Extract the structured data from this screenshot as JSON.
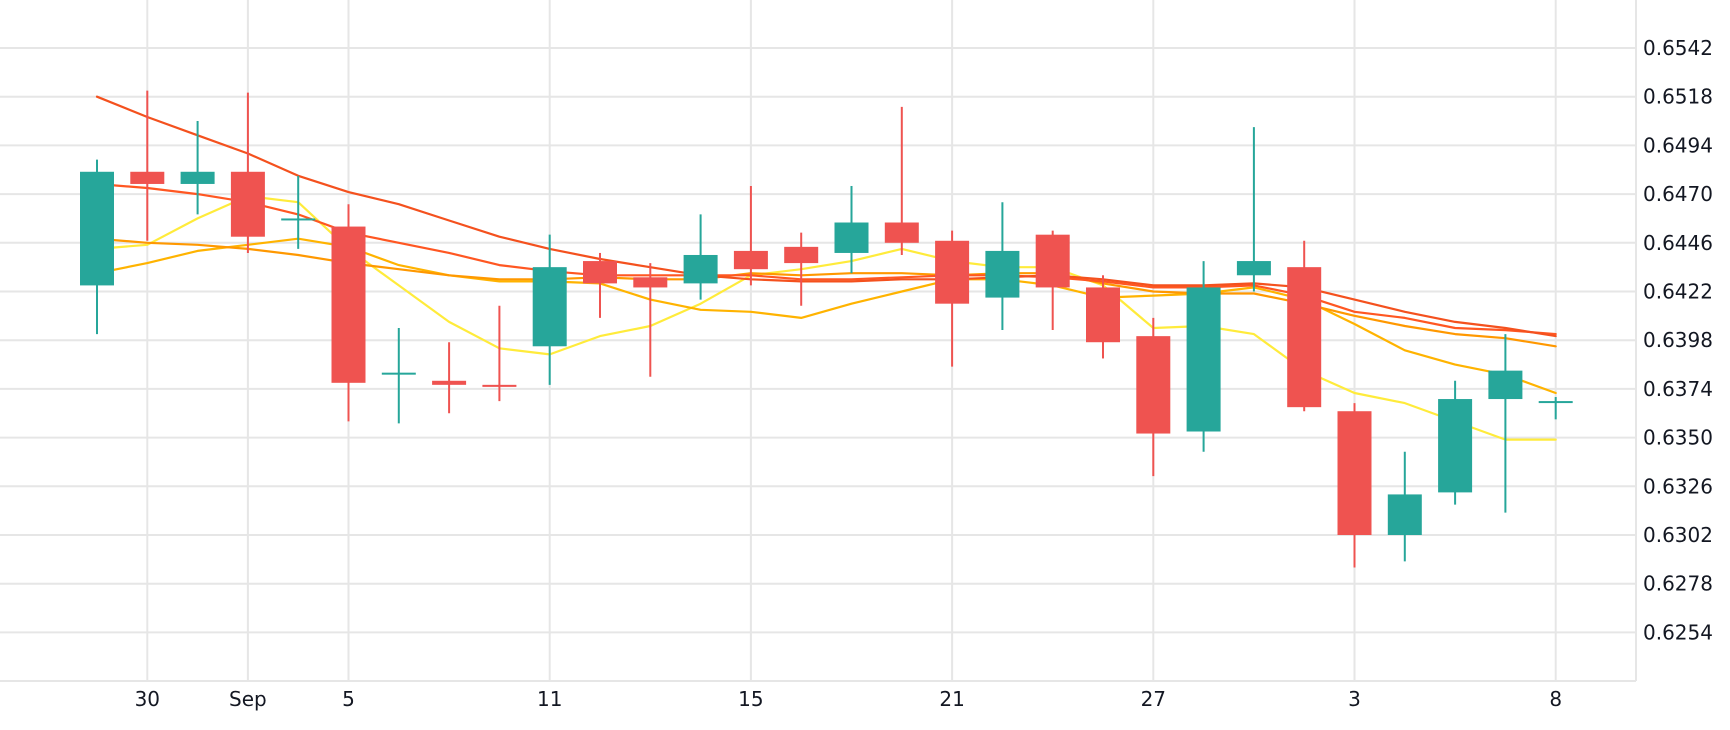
{
  "chart_data": {
    "type": "candlestick",
    "title": "",
    "xlabel": "",
    "ylabel": "",
    "ylim": [
      0.623,
      0.6566
    ],
    "grid": true,
    "y_ticks": [
      "0.6542",
      "0.6518",
      "0.6494",
      "0.6470",
      "0.6446",
      "0.6422",
      "0.6398",
      "0.6374",
      "0.6350",
      "0.6326",
      "0.6302",
      "0.6278",
      "0.6254"
    ],
    "x_ticks": [
      {
        "index": 1,
        "label": "30"
      },
      {
        "index": 3,
        "label": "Sep"
      },
      {
        "index": 5,
        "label": "5"
      },
      {
        "index": 9,
        "label": "11"
      },
      {
        "index": 13,
        "label": "15"
      },
      {
        "index": 17,
        "label": "21"
      },
      {
        "index": 21,
        "label": "27"
      },
      {
        "index": 25,
        "label": "3"
      },
      {
        "index": 29,
        "label": "8"
      }
    ],
    "colors": {
      "up": "#26a69a",
      "down": "#ef5350",
      "grid": "#e6e6e6"
    },
    "candles": [
      {
        "o": 0.6425,
        "h": 0.6487,
        "l": 0.6401,
        "c": 0.6481
      },
      {
        "o": 0.6481,
        "h": 0.6521,
        "l": 0.6447,
        "c": 0.6475
      },
      {
        "o": 0.6475,
        "h": 0.6506,
        "l": 0.646,
        "c": 0.6481
      },
      {
        "o": 0.6481,
        "h": 0.652,
        "l": 0.6441,
        "c": 0.6449
      },
      {
        "o": 0.6458,
        "h": 0.6479,
        "l": 0.6443,
        "c": 0.6458
      },
      {
        "o": 0.6454,
        "h": 0.6465,
        "l": 0.6358,
        "c": 0.6377
      },
      {
        "o": 0.6382,
        "h": 0.6404,
        "l": 0.6357,
        "c": 0.6382
      },
      {
        "o": 0.6378,
        "h": 0.6397,
        "l": 0.6362,
        "c": 0.6376
      },
      {
        "o": 0.6376,
        "h": 0.6415,
        "l": 0.6368,
        "c": 0.6375
      },
      {
        "o": 0.6395,
        "h": 0.645,
        "l": 0.6376,
        "c": 0.6434
      },
      {
        "o": 0.6437,
        "h": 0.6441,
        "l": 0.6409,
        "c": 0.6426
      },
      {
        "o": 0.6429,
        "h": 0.6436,
        "l": 0.638,
        "c": 0.6424
      },
      {
        "o": 0.6426,
        "h": 0.646,
        "l": 0.6418,
        "c": 0.644
      },
      {
        "o": 0.6442,
        "h": 0.6474,
        "l": 0.6425,
        "c": 0.6433
      },
      {
        "o": 0.6444,
        "h": 0.6451,
        "l": 0.6415,
        "c": 0.6436
      },
      {
        "o": 0.6441,
        "h": 0.6474,
        "l": 0.6431,
        "c": 0.6456
      },
      {
        "o": 0.6456,
        "h": 0.6513,
        "l": 0.644,
        "c": 0.6446
      },
      {
        "o": 0.6447,
        "h": 0.6452,
        "l": 0.6385,
        "c": 0.6416
      },
      {
        "o": 0.6419,
        "h": 0.6466,
        "l": 0.6403,
        "c": 0.6442
      },
      {
        "o": 0.645,
        "h": 0.6452,
        "l": 0.6403,
        "c": 0.6424
      },
      {
        "o": 0.6424,
        "h": 0.643,
        "l": 0.6389,
        "c": 0.6397
      },
      {
        "o": 0.64,
        "h": 0.6409,
        "l": 0.6331,
        "c": 0.6352
      },
      {
        "o": 0.6353,
        "h": 0.6437,
        "l": 0.6343,
        "c": 0.6424
      },
      {
        "o": 0.643,
        "h": 0.6503,
        "l": 0.6422,
        "c": 0.6437
      },
      {
        "o": 0.6434,
        "h": 0.6447,
        "l": 0.6363,
        "c": 0.6365
      },
      {
        "o": 0.6363,
        "h": 0.6367,
        "l": 0.6286,
        "c": 0.6302
      },
      {
        "o": 0.6302,
        "h": 0.6343,
        "l": 0.6289,
        "c": 0.6322
      },
      {
        "o": 0.6323,
        "h": 0.6378,
        "l": 0.6317,
        "c": 0.6369
      },
      {
        "o": 0.6369,
        "h": 0.6401,
        "l": 0.6313,
        "c": 0.6383
      },
      {
        "o": 0.6368,
        "h": 0.637,
        "l": 0.6359,
        "c": 0.6368
      }
    ],
    "series": [
      {
        "color": "#ffeb3b",
        "values": [
          0.6443,
          0.6445,
          0.6458,
          0.6469,
          0.6466,
          0.6443,
          0.6425,
          0.6407,
          0.6394,
          0.6391,
          0.64,
          0.6405,
          0.6416,
          0.643,
          0.6433,
          0.6437,
          0.6443,
          0.6437,
          0.6434,
          0.6434,
          0.6425,
          0.6404,
          0.6405,
          0.6401,
          0.6383,
          0.6372,
          0.6367,
          0.6358,
          0.6349,
          0.6349
        ]
      },
      {
        "color": "#ffb300",
        "values": [
          0.6431,
          0.6436,
          0.6442,
          0.6445,
          0.6448,
          0.6444,
          0.6435,
          0.643,
          0.6427,
          0.6427,
          0.6426,
          0.6418,
          0.6413,
          0.6412,
          0.6409,
          0.6416,
          0.6422,
          0.6428,
          0.6428,
          0.6425,
          0.6419,
          0.642,
          0.6421,
          0.6424,
          0.6418,
          0.6406,
          0.6393,
          0.6386,
          0.6381,
          0.6372
        ]
      },
      {
        "color": "#ff9800",
        "values": [
          0.6448,
          0.6446,
          0.6445,
          0.6443,
          0.644,
          0.6436,
          0.6433,
          0.643,
          0.6428,
          0.6428,
          0.6429,
          0.6428,
          0.6428,
          0.6431,
          0.643,
          0.6431,
          0.6431,
          0.643,
          0.6431,
          0.6431,
          0.6426,
          0.6422,
          0.6421,
          0.6421,
          0.6416,
          0.641,
          0.6405,
          0.6401,
          0.6399,
          0.6395
        ]
      },
      {
        "color": "#ff5722",
        "values": [
          0.6475,
          0.6473,
          0.647,
          0.6466,
          0.646,
          0.6451,
          0.6446,
          0.6441,
          0.6435,
          0.6432,
          0.643,
          0.643,
          0.643,
          0.643,
          0.6428,
          0.6428,
          0.6429,
          0.643,
          0.643,
          0.6429,
          0.6427,
          0.6424,
          0.6424,
          0.6425,
          0.642,
          0.6412,
          0.6409,
          0.6404,
          0.6403,
          0.6401
        ]
      },
      {
        "color": "#f4511e",
        "values": [
          0.6518,
          0.6508,
          0.6499,
          0.649,
          0.6479,
          0.6471,
          0.6465,
          0.6457,
          0.6449,
          0.6443,
          0.6438,
          0.6434,
          0.643,
          0.6428,
          0.6427,
          0.6427,
          0.6428,
          0.6428,
          0.6429,
          0.643,
          0.6428,
          0.6425,
          0.6425,
          0.6426,
          0.6424,
          0.6418,
          0.6412,
          0.6407,
          0.6404,
          0.64
        ]
      }
    ]
  }
}
